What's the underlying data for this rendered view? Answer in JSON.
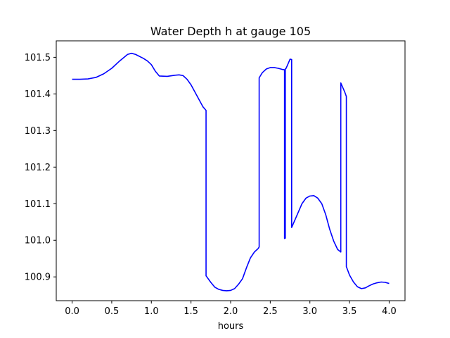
{
  "chart_data": {
    "type": "line",
    "title": "Water Depth h at gauge 105",
    "xlabel": "hours",
    "ylabel": "",
    "xlim": [
      -0.2,
      4.2
    ],
    "ylim": [
      100.835,
      101.545
    ],
    "xticks": [
      0.0,
      0.5,
      1.0,
      1.5,
      2.0,
      2.5,
      3.0,
      3.5,
      4.0
    ],
    "xtick_labels": [
      "0.0",
      "0.5",
      "1.0",
      "1.5",
      "2.0",
      "2.5",
      "3.0",
      "3.5",
      "4.0"
    ],
    "yticks": [
      100.9,
      101.0,
      101.1,
      101.2,
      101.3,
      101.4,
      101.5
    ],
    "ytick_labels": [
      "100.9",
      "101.0",
      "101.1",
      "101.2",
      "101.3",
      "101.4",
      "101.5"
    ],
    "grid": false,
    "series": [
      {
        "color": "#0000ff",
        "x": [
          0.0,
          0.1,
          0.2,
          0.3,
          0.4,
          0.5,
          0.6,
          0.7,
          0.75,
          0.8,
          0.9,
          0.95,
          1.0,
          1.05,
          1.1,
          1.2,
          1.3,
          1.35,
          1.4,
          1.45,
          1.5,
          1.55,
          1.6,
          1.65,
          1.69,
          1.69,
          1.75,
          1.8,
          1.85,
          1.9,
          1.95,
          2.0,
          2.05,
          2.1,
          2.15,
          2.2,
          2.25,
          2.3,
          2.35,
          2.36,
          2.36,
          2.4,
          2.45,
          2.5,
          2.55,
          2.6,
          2.65,
          2.68,
          2.68,
          2.69,
          2.69,
          2.7,
          2.72,
          2.75,
          2.77,
          2.77,
          2.8,
          2.85,
          2.9,
          2.95,
          3.0,
          3.05,
          3.1,
          3.15,
          3.2,
          3.25,
          3.3,
          3.35,
          3.39,
          3.39,
          3.42,
          3.44,
          3.46,
          3.46,
          3.5,
          3.55,
          3.6,
          3.65,
          3.7,
          3.75,
          3.8,
          3.85,
          3.9,
          3.95,
          4.0
        ],
        "y": [
          101.44,
          101.44,
          101.441,
          101.445,
          101.455,
          101.47,
          101.49,
          101.508,
          101.511,
          101.508,
          101.497,
          101.49,
          101.48,
          101.462,
          101.449,
          101.448,
          101.451,
          101.452,
          101.45,
          101.44,
          101.425,
          101.405,
          101.385,
          101.365,
          101.355,
          100.903,
          100.885,
          100.872,
          100.866,
          100.863,
          100.862,
          100.863,
          100.868,
          100.88,
          100.895,
          100.925,
          100.952,
          100.968,
          100.978,
          100.982,
          101.444,
          101.458,
          101.468,
          101.472,
          101.472,
          101.47,
          101.467,
          101.466,
          101.005,
          101.006,
          101.468,
          101.47,
          101.48,
          101.495,
          101.494,
          101.035,
          101.05,
          101.075,
          101.1,
          101.115,
          101.121,
          101.122,
          101.115,
          101.1,
          101.07,
          101.03,
          100.998,
          100.975,
          100.968,
          101.43,
          101.415,
          101.405,
          101.393,
          100.928,
          100.905,
          100.886,
          100.873,
          100.868,
          100.87,
          100.876,
          100.881,
          100.884,
          100.886,
          100.885,
          100.882
        ]
      }
    ]
  }
}
